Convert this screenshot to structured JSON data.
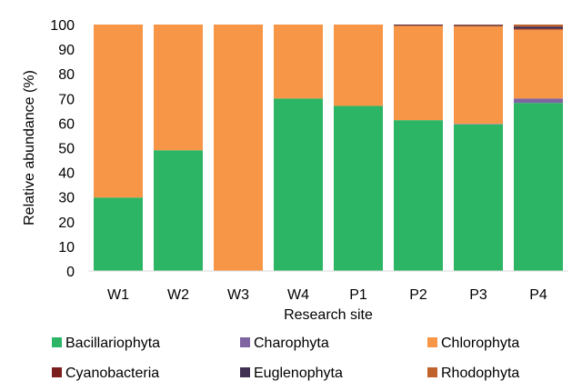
{
  "chart_data": {
    "type": "bar",
    "stacked": true,
    "xlabel": "Research site",
    "ylabel": "Relative abundance (%)",
    "ylim": [
      0,
      100
    ],
    "yticks": [
      0,
      10,
      20,
      30,
      40,
      50,
      60,
      70,
      80,
      90,
      100
    ],
    "grid": false,
    "legend_position": "bottom",
    "categories": [
      "W1",
      "W2",
      "W3",
      "W4",
      "P1",
      "P2",
      "P3",
      "P4"
    ],
    "series": [
      {
        "name": "Bacillariophyta",
        "color": "#2bb564",
        "values": [
          29.8,
          49.0,
          0.0,
          70.0,
          67.0,
          61.2,
          59.5,
          68.2
        ]
      },
      {
        "name": "Charophyta",
        "color": "#8064a2",
        "values": [
          0,
          0,
          0,
          0,
          0,
          0,
          0.2,
          1.8
        ]
      },
      {
        "name": "Chlorophyta",
        "color": "#f79646",
        "values": [
          70.2,
          51.0,
          100.0,
          30.0,
          33.0,
          38.3,
          39.6,
          28.0
        ]
      },
      {
        "name": "Cyanobacteria",
        "color": "#7b1e1e",
        "values": [
          0,
          0,
          0,
          0,
          0,
          0.3,
          0.2,
          0.4
        ]
      },
      {
        "name": "Euglenophyta",
        "color": "#403152",
        "values": [
          0,
          0,
          0,
          0,
          0,
          0.2,
          0.3,
          0.8
        ]
      },
      {
        "name": "Rhodophyta",
        "color": "#c0622b",
        "values": [
          0,
          0,
          0,
          0,
          0,
          0,
          0.2,
          0.8
        ]
      }
    ]
  }
}
